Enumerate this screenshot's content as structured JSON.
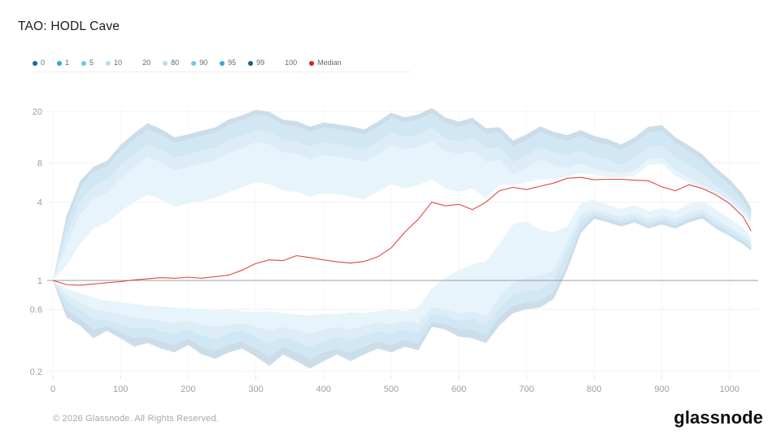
{
  "title": "TAO: HODL Cave",
  "footer": {
    "copyright": "© 2026 Glassnode. All Rights Reserved.",
    "brand": "glassnode"
  },
  "legend": [
    {
      "label": "0",
      "color": "#18699e"
    },
    {
      "label": "1",
      "color": "#30a8e0"
    },
    {
      "label": "5",
      "color": "#74c4ea"
    },
    {
      "label": "10",
      "color": "#b4def2"
    },
    {
      "label": "20",
      "color": "none"
    },
    {
      "label": "80",
      "color": "#b4def2"
    },
    {
      "label": "90",
      "color": "#74c4ea"
    },
    {
      "label": "95",
      "color": "#30a8e0"
    },
    {
      "label": "99",
      "color": "#155d8c"
    },
    {
      "label": "100",
      "color": "none"
    },
    {
      "label": "Median",
      "color": "#e01f1f"
    }
  ],
  "chart_data": {
    "type": "area",
    "title": "TAO: HODL Cave",
    "y_scale": "log",
    "baseline_value": 1,
    "baseline_color": "#8f9398",
    "grid_color": "#f1f1f1",
    "y_ticks": [
      {
        "value": 20,
        "label": "20"
      },
      {
        "value": 8,
        "label": "8"
      },
      {
        "value": 4,
        "label": "4"
      },
      {
        "value": 1,
        "label": "1"
      },
      {
        "value": 0.6,
        "label": "0.6"
      },
      {
        "value": 0.2,
        "label": "0.2"
      }
    ],
    "x_ticks": [
      0,
      100,
      200,
      300,
      400,
      500,
      600,
      700,
      800,
      900,
      1000
    ],
    "x": [
      0,
      20,
      40,
      60,
      80,
      100,
      120,
      140,
      160,
      180,
      200,
      220,
      240,
      260,
      280,
      300,
      320,
      340,
      360,
      380,
      400,
      420,
      440,
      460,
      480,
      500,
      520,
      540,
      560,
      580,
      600,
      620,
      640,
      660,
      680,
      700,
      720,
      740,
      760,
      780,
      800,
      820,
      840,
      860,
      880,
      900,
      920,
      940,
      960,
      980,
      1000,
      1020,
      1032
    ],
    "series": {
      "p100": [
        1.0,
        3.1,
        5.8,
        7.5,
        8.3,
        11.0,
        13.5,
        16.2,
        14.6,
        12.6,
        13.3,
        14.2,
        15.0,
        17.3,
        18.6,
        20.5,
        19.8,
        17.2,
        16.8,
        15.2,
        16.4,
        15.9,
        15.3,
        14.5,
        16.6,
        19.5,
        18.0,
        18.9,
        21.2,
        17.9,
        16.6,
        17.8,
        14.8,
        15.1,
        11.9,
        13.3,
        15.3,
        13.9,
        13.1,
        14.3,
        12.9,
        12.2,
        11.1,
        12.6,
        15.2,
        15.6,
        12.6,
        10.9,
        9.3,
        7.3,
        6.0,
        4.6,
        3.6
      ],
      "p99": [
        1.0,
        2.7,
        5.1,
        6.8,
        7.5,
        9.8,
        12.1,
        14.5,
        13.2,
        11.4,
        12.1,
        12.9,
        13.7,
        15.7,
        17.0,
        18.8,
        18.1,
        15.7,
        15.3,
        13.9,
        15.0,
        14.5,
        14.0,
        13.2,
        15.1,
        17.8,
        16.4,
        17.2,
        19.3,
        16.2,
        15.1,
        16.2,
        13.4,
        13.7,
        10.6,
        11.9,
        13.8,
        12.5,
        11.8,
        12.9,
        11.6,
        11.0,
        10.0,
        11.4,
        13.8,
        14.2,
        11.4,
        9.8,
        8.4,
        6.6,
        5.4,
        4.1,
        3.3
      ],
      "p95": [
        1.0,
        2.2,
        4.0,
        5.3,
        5.9,
        7.6,
        9.3,
        11.1,
        10.1,
        8.8,
        9.3,
        9.9,
        10.5,
        12.0,
        13.0,
        14.4,
        13.9,
        12.0,
        11.7,
        10.7,
        11.5,
        11.1,
        10.7,
        10.1,
        11.6,
        13.6,
        12.6,
        13.2,
        14.8,
        12.4,
        11.6,
        12.4,
        10.3,
        10.5,
        8.1,
        9.1,
        10.6,
        9.6,
        9.1,
        9.9,
        8.9,
        8.5,
        7.7,
        8.8,
        10.6,
        10.9,
        8.8,
        7.6,
        6.6,
        5.3,
        4.5,
        3.6,
        3.0
      ],
      "p90": [
        1.0,
        1.8,
        3.2,
        4.2,
        4.7,
        6.1,
        7.4,
        8.9,
        8.1,
        7.0,
        7.4,
        7.9,
        8.4,
        9.6,
        10.4,
        11.5,
        11.1,
        9.6,
        9.4,
        8.5,
        9.2,
        8.9,
        8.6,
        8.1,
        9.3,
        10.9,
        10.1,
        10.6,
        11.8,
        9.9,
        9.3,
        9.9,
        8.2,
        8.4,
        6.5,
        7.3,
        8.5,
        7.7,
        7.3,
        7.9,
        7.2,
        6.8,
        6.6,
        7.0,
        8.5,
        8.7,
        7.0,
        6.1,
        5.4,
        4.8,
        4.15,
        3.35,
        2.85
      ],
      "p80": [
        1.0,
        1.3,
        1.9,
        2.5,
        2.8,
        3.4,
        4.0,
        4.6,
        4.2,
        3.7,
        3.9,
        4.1,
        4.3,
        4.8,
        5.2,
        5.7,
        5.5,
        4.9,
        4.8,
        4.4,
        4.7,
        4.6,
        4.4,
        4.2,
        4.8,
        5.5,
        5.1,
        5.4,
        6.0,
        5.1,
        4.8,
        5.1,
        4.3,
        5.4,
        5.4,
        5.7,
        6.0,
        6.0,
        6.3,
        6.7,
        6.5,
        6.2,
        6.2,
        6.4,
        7.7,
        7.9,
        6.4,
        5.6,
        5.2,
        4.6,
        4.0,
        3.2,
        2.7
      ],
      "p20": [
        1.0,
        0.87,
        0.8,
        0.74,
        0.7,
        0.68,
        0.66,
        0.64,
        0.63,
        0.62,
        0.61,
        0.6,
        0.59,
        0.6,
        0.58,
        0.57,
        0.58,
        0.56,
        0.55,
        0.54,
        0.56,
        0.55,
        0.57,
        0.56,
        0.58,
        0.6,
        0.58,
        0.62,
        0.87,
        1.05,
        1.2,
        1.33,
        1.4,
        1.9,
        2.7,
        2.85,
        2.45,
        2.35,
        2.6,
        3.9,
        4.2,
        3.8,
        3.55,
        3.8,
        3.4,
        3.6,
        3.4,
        3.9,
        4.1,
        3.5,
        3.0,
        2.55,
        2.15
      ],
      "p10": [
        1.0,
        0.78,
        0.68,
        0.6,
        0.58,
        0.55,
        0.52,
        0.51,
        0.49,
        0.47,
        0.49,
        0.46,
        0.44,
        0.46,
        0.47,
        0.44,
        0.41,
        0.44,
        0.42,
        0.39,
        0.42,
        0.44,
        0.42,
        0.45,
        0.48,
        0.46,
        0.49,
        0.47,
        0.62,
        0.6,
        0.56,
        0.58,
        0.53,
        0.75,
        0.95,
        1.05,
        1.1,
        1.2,
        2.0,
        3.2,
        3.55,
        3.3,
        3.1,
        3.3,
        3.0,
        3.2,
        3.0,
        3.3,
        3.55,
        3.0,
        2.6,
        2.25,
        1.98
      ],
      "p5": [
        1.0,
        0.7,
        0.6,
        0.51,
        0.5,
        0.46,
        0.43,
        0.44,
        0.41,
        0.39,
        0.42,
        0.38,
        0.36,
        0.39,
        0.41,
        0.37,
        0.33,
        0.37,
        0.34,
        0.31,
        0.34,
        0.37,
        0.35,
        0.38,
        0.41,
        0.39,
        0.42,
        0.4,
        0.55,
        0.53,
        0.49,
        0.51,
        0.46,
        0.62,
        0.78,
        0.82,
        0.86,
        1.0,
        1.7,
        2.9,
        3.35,
        3.1,
        2.9,
        3.1,
        2.8,
        3.0,
        2.8,
        3.1,
        3.3,
        2.8,
        2.45,
        2.1,
        1.88
      ],
      "p1": [
        1.0,
        0.6,
        0.51,
        0.42,
        0.45,
        0.4,
        0.36,
        0.37,
        0.34,
        0.32,
        0.36,
        0.31,
        0.29,
        0.32,
        0.34,
        0.3,
        0.26,
        0.31,
        0.28,
        0.25,
        0.28,
        0.3,
        0.28,
        0.31,
        0.34,
        0.32,
        0.35,
        0.33,
        0.48,
        0.46,
        0.42,
        0.42,
        0.38,
        0.52,
        0.64,
        0.68,
        0.7,
        0.82,
        1.35,
        2.55,
        3.15,
        2.95,
        2.75,
        2.95,
        2.65,
        2.85,
        2.65,
        2.95,
        3.15,
        2.65,
        2.3,
        2.0,
        1.78
      ],
      "p0": [
        1.0,
        0.52,
        0.45,
        0.36,
        0.41,
        0.36,
        0.31,
        0.33,
        0.3,
        0.28,
        0.32,
        0.27,
        0.25,
        0.28,
        0.3,
        0.26,
        0.22,
        0.27,
        0.24,
        0.21,
        0.24,
        0.27,
        0.24,
        0.27,
        0.3,
        0.28,
        0.31,
        0.29,
        0.44,
        0.42,
        0.37,
        0.36,
        0.33,
        0.45,
        0.56,
        0.6,
        0.62,
        0.72,
        1.2,
        2.3,
        3.0,
        2.8,
        2.6,
        2.8,
        2.5,
        2.7,
        2.5,
        2.8,
        3.0,
        2.5,
        2.2,
        1.9,
        1.7
      ],
      "median": [
        1.0,
        0.93,
        0.92,
        0.94,
        0.96,
        0.98,
        1.01,
        1.03,
        1.05,
        1.04,
        1.06,
        1.04,
        1.07,
        1.1,
        1.2,
        1.35,
        1.44,
        1.42,
        1.55,
        1.5,
        1.44,
        1.39,
        1.36,
        1.4,
        1.52,
        1.78,
        2.35,
        2.95,
        4.0,
        3.75,
        3.85,
        3.5,
        4.0,
        4.9,
        5.2,
        5.0,
        5.3,
        5.6,
        6.1,
        6.2,
        5.95,
        6.0,
        6.0,
        5.9,
        5.85,
        5.25,
        4.9,
        5.45,
        5.1,
        4.55,
        3.9,
        3.1,
        2.4
      ]
    },
    "bands": [
      {
        "lo": "p99",
        "hi": "p100",
        "fill": "#cbdde9"
      },
      {
        "lo": "p95",
        "hi": "p99",
        "fill": "#d2e7f4"
      },
      {
        "lo": "p90",
        "hi": "p95",
        "fill": "#dcedf8"
      },
      {
        "lo": "p80",
        "hi": "p90",
        "fill": "#e8f4fb"
      },
      {
        "lo": "p10",
        "hi": "p20",
        "fill": "#e8f4fb"
      },
      {
        "lo": "p5",
        "hi": "p10",
        "fill": "#dcedf8"
      },
      {
        "lo": "p1",
        "hi": "p5",
        "fill": "#d2e7f4"
      },
      {
        "lo": "p0",
        "hi": "p1",
        "fill": "#cbdde9"
      }
    ],
    "median_color": "#e04843"
  }
}
